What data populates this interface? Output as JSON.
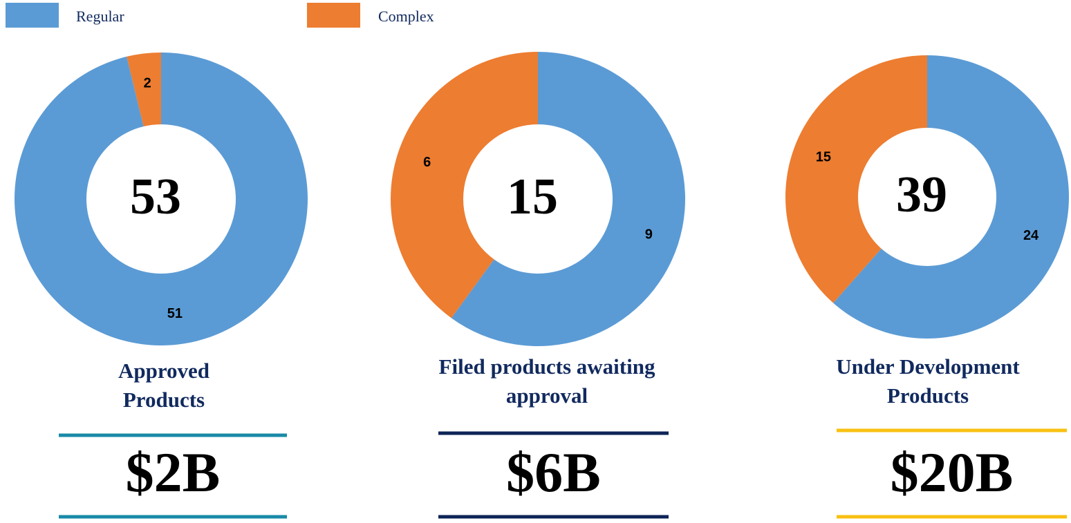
{
  "chart_data": [
    {
      "type": "donut",
      "title": "Approved Products",
      "categories": [
        "Regular",
        "Complex"
      ],
      "values": [
        51,
        2
      ],
      "colors": [
        "#5b9bd5",
        "#ed7d31"
      ],
      "total": 53,
      "footer": "$2B",
      "accent_color": "#1a8aa8"
    },
    {
      "type": "donut",
      "title": "Filed products awaiting approval",
      "categories": [
        "Regular",
        "Complex"
      ],
      "values": [
        9,
        6
      ],
      "colors": [
        "#5b9bd5",
        "#ed7d31"
      ],
      "total": 15,
      "footer": "$6B",
      "accent_color": "#0d2456"
    },
    {
      "type": "donut",
      "title": "Under Development Products",
      "categories": [
        "Regular",
        "Complex"
      ],
      "values": [
        24,
        15
      ],
      "colors": [
        "#5b9bd5",
        "#ed7d31"
      ],
      "total": 39,
      "footer": "$20B",
      "accent_color": "#f9c012"
    }
  ]
}
